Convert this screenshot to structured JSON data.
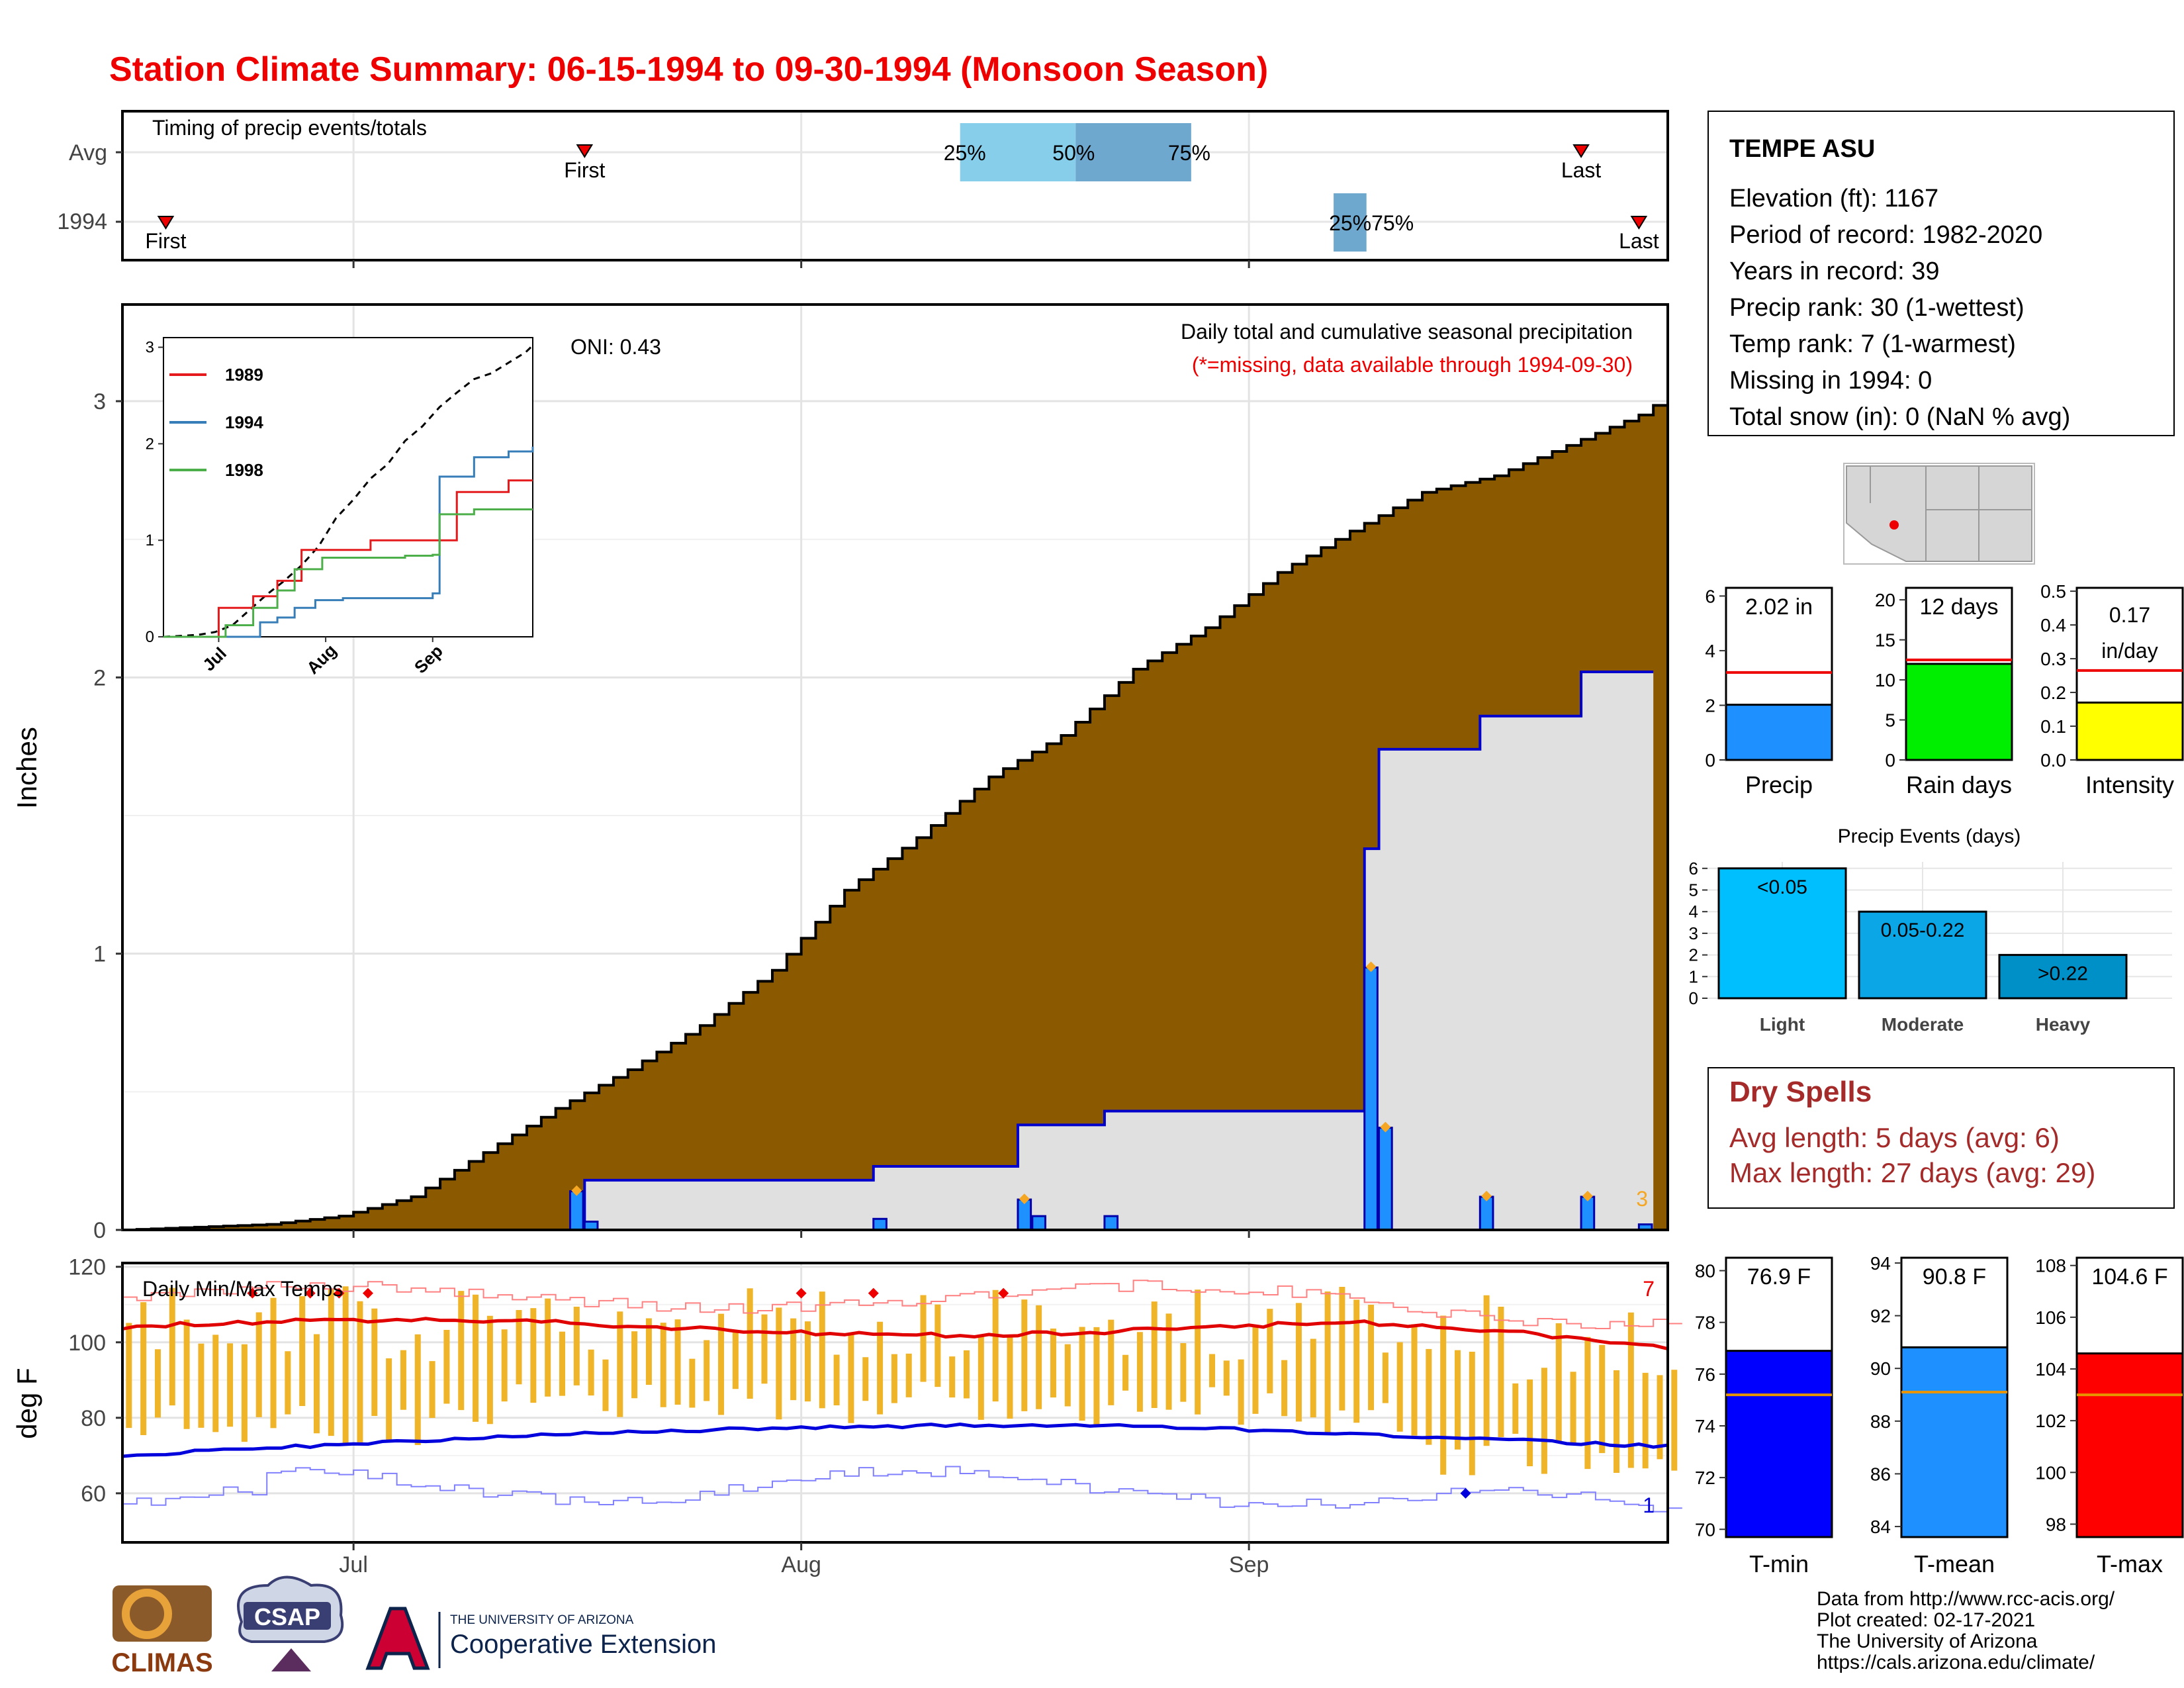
{
  "title": "Station Climate Summary: 06-15-1994 to 09-30-1994 (Monsoon Season)",
  "colors": {
    "title": "#ee0000",
    "avg_fill": "#8b5a00",
    "year_fill": "#e0e0e0",
    "year_line": "#0000cc",
    "bar": "#1e90ff",
    "orange": "#f5a623",
    "tmax_line": "#e00000",
    "tmin_line": "#0000dd",
    "range_bar": "#f0b429",
    "dry_spells": "#a52a2a"
  },
  "timing_panel": {
    "title": "Timing of precip events/totals",
    "row_labels": [
      "Avg",
      "1994"
    ],
    "first_label": "First",
    "last_label": "Last",
    "avg": {
      "first_day": 32,
      "p25": 58,
      "p50": 66,
      "p75": 74,
      "last_day": 101
    },
    "year": {
      "first_day": 3,
      "p25": 84,
      "p50": 85,
      "p75": 86,
      "last_day": 105
    },
    "avg_pct_labels": [
      "25%",
      "50%",
      "75%"
    ],
    "year_pct_label": "25%75%"
  },
  "precip_panel": {
    "ylabel": "Inches",
    "oni": "ONI: 0.43",
    "note1": "Daily total and cumulative seasonal precipitation",
    "note2": "(*=missing, data available through 1994-09-30)",
    "corner_count": "3",
    "y_ticks": [
      "0",
      "1",
      "2",
      "3"
    ],
    "x_ticks": [
      "Jul",
      "Aug",
      "Sep"
    ]
  },
  "inset": {
    "legend": [
      "1989",
      "1994",
      "1998"
    ],
    "legend_colors": [
      "#e41a1c",
      "#377eb8",
      "#4daf4a"
    ],
    "y_ticks": [
      "0",
      "1",
      "2",
      "3"
    ],
    "x_ticks": [
      "Jul",
      "Aug",
      "Sep"
    ]
  },
  "temp_panel": {
    "title": "Daily Min/Max Temps",
    "ylabel": "deg F",
    "y_ticks": [
      "120",
      "100",
      "80",
      "60"
    ],
    "count_high": "7",
    "count_low": "1"
  },
  "station": {
    "name": "TEMPE ASU",
    "lines": [
      "Elevation (ft): 1167",
      "Period of record: 1982-2020",
      "Years in record: 39",
      "Precip rank: 30 (1-wettest)",
      "Temp rank: 7 (1-warmest)",
      "Missing in 1994: 0",
      "Total snow (in): 0 (NaN % avg)"
    ]
  },
  "mini_bars": [
    {
      "label": "Precip",
      "value_text": "2.02 in",
      "value": 2.02,
      "avg": 3.2,
      "ymax": 6.3,
      "ticks": [
        0,
        2,
        4,
        6
      ],
      "color": "#1e90ff"
    },
    {
      "label": "Rain days",
      "value_text": "12 days",
      "value": 12,
      "avg": 12.5,
      "ymax": 21.5,
      "ticks": [
        0,
        5,
        10,
        15,
        20
      ],
      "color": "#00ee00"
    },
    {
      "label": "Intensity",
      "value_text": "0.17 in/day",
      "value": 0.17,
      "avg": 0.265,
      "ymax": 0.51,
      "ticks": [
        "0.0",
        "0.1",
        "0.2",
        "0.3",
        "0.4",
        "0.5"
      ],
      "color": "#ffff00"
    }
  ],
  "precip_events": {
    "title": "Precip Events (days)",
    "categories": [
      "Light",
      "Moderate",
      "Heavy"
    ],
    "bar_labels": [
      "<0.05",
      "0.05-0.22",
      ">0.22"
    ],
    "values": [
      6,
      4,
      2
    ],
    "ticks": [
      0,
      1,
      2,
      3,
      4,
      5,
      6
    ],
    "colors": [
      "#00bfff",
      "#0aa6e6",
      "#0090c8"
    ]
  },
  "dry_spells": {
    "title": "Dry Spells",
    "lines": [
      "Avg length: 5 days (avg: 6)",
      "Max length: 27 days (avg: 29)"
    ]
  },
  "temp_bars": [
    {
      "label": "T-min",
      "value_text": "76.9 F",
      "value": 76.9,
      "avg": 75.2,
      "ymin": 69.7,
      "ymax": 80.5,
      "ticks": [
        70,
        72,
        74,
        76,
        78,
        80
      ],
      "color": "#0000ff"
    },
    {
      "label": "T-mean",
      "value_text": "90.8 F",
      "value": 90.8,
      "avg": 89.1,
      "ymin": 83.6,
      "ymax": 94.2,
      "ticks": [
        84,
        86,
        88,
        90,
        92,
        94
      ],
      "color": "#1e90ff"
    },
    {
      "label": "T-max",
      "value_text": "104.6 F",
      "value": 104.6,
      "avg": 103.0,
      "ymin": 97.5,
      "ymax": 108.3,
      "ticks": [
        98,
        100,
        102,
        104,
        106,
        108
      ],
      "color": "#ff0000"
    }
  ],
  "footer": {
    "lines": [
      "Data from http://www.rcc-acis.org/",
      "Plot created: 02-17-2021",
      "The University of Arizona",
      "https://cals.arizona.edu/climate/"
    ]
  },
  "logos": {
    "climas": "CLIMAS",
    "csap": "CSAP",
    "ua_small": "THE UNIVERSITY OF ARIZONA",
    "ua_big": "Cooperative Extension"
  },
  "chart_data": [
    {
      "type": "area",
      "title": "Daily total and cumulative seasonal precipitation",
      "ylabel": "Inches",
      "x_range": [
        "1994-06-15",
        "1994-09-30"
      ],
      "ylim": [
        0,
        3.35
      ],
      "series": [
        {
          "name": "avg cumulative",
          "x": [
            0,
            5,
            10,
            15,
            20,
            25,
            30,
            35,
            40,
            45,
            50,
            55,
            60,
            65,
            70,
            75,
            80,
            85,
            90,
            95,
            100,
            105,
            107
          ],
          "y": [
            0,
            0.01,
            0.02,
            0.05,
            0.12,
            0.28,
            0.44,
            0.58,
            0.74,
            0.94,
            1.23,
            1.42,
            1.64,
            1.79,
            2.03,
            2.18,
            2.38,
            2.53,
            2.67,
            2.73,
            2.84,
            2.95,
            3.02
          ]
        },
        {
          "name": "1994",
          "x": [
            0,
            31,
            32,
            52,
            62,
            63,
            68,
            86,
            87,
            94,
            101,
            105
          ],
          "y": [
            0,
            0,
            0.18,
            0.23,
            0.38,
            0.38,
            0.43,
            1.38,
            1.74,
            1.86,
            2.02,
            2.02
          ]
        },
        {
          "name": "1994 daily",
          "x": [
            31,
            32,
            52,
            62,
            63,
            68,
            86,
            87,
            94,
            101,
            105
          ],
          "y": [
            0.14,
            0.03,
            0.04,
            0.11,
            0.05,
            0.05,
            0.95,
            0.37,
            0.12,
            0.12,
            0.02
          ]
        }
      ]
    },
    {
      "type": "line",
      "title": "Daily Min/Max Temps",
      "ylabel": "deg F",
      "ylim": [
        47,
        121
      ]
    }
  ]
}
